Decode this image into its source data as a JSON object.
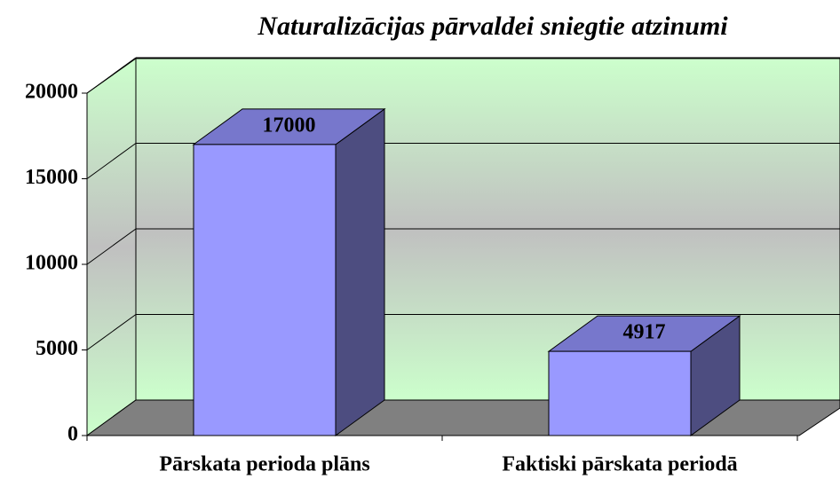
{
  "chart_data": {
    "type": "bar3d",
    "title": "Naturalizācijas pārvaldei sniegtie atzinumi",
    "categories": [
      "Pārskata perioda plāns",
      "Faktiski pārskata periodā"
    ],
    "values": [
      17000,
      4917
    ],
    "color": "#9999ff",
    "ylim": [
      0,
      20000
    ],
    "yticks": [
      0,
      5000,
      10000,
      15000,
      20000
    ],
    "grid": true
  }
}
